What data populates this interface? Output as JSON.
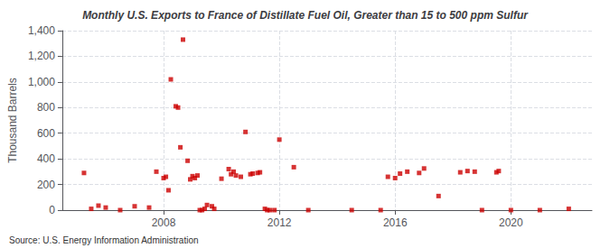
{
  "chart_data": {
    "type": "scatter",
    "title": "Monthly U.S. Exports to France of Distillate Fuel Oil, Greater than 15 to 500 ppm Sulfur",
    "ylabel": "Thousand Barrels",
    "annotations": [
      "Source: U.S. Energy Information Administration"
    ],
    "color": "#cc0000",
    "marker": "square",
    "grid": true,
    "xlim": [
      2004.5,
      2022.8
    ],
    "xticks": [
      2008,
      2012,
      2016,
      2020
    ],
    "ylim": [
      0,
      1400
    ],
    "yticks": [
      0,
      200,
      400,
      600,
      800,
      {
        "value": 1000,
        "label": "1,000"
      },
      {
        "value": 1200,
        "label": "1,200"
      },
      {
        "value": 1400,
        "label": "1,400"
      }
    ],
    "x": [
      2005.25,
      2005.5,
      2005.75,
      2006.0,
      2006.5,
      2007.0,
      2007.5,
      2007.75,
      2008.0,
      2008.08,
      2008.17,
      2008.25,
      2008.42,
      2008.5,
      2008.58,
      2008.67,
      2008.83,
      2008.92,
      2009.0,
      2009.08,
      2009.17,
      2009.25,
      2009.33,
      2009.42,
      2009.5,
      2009.67,
      2009.75,
      2010.0,
      2010.25,
      2010.33,
      2010.42,
      2010.5,
      2010.67,
      2010.83,
      2011.0,
      2011.08,
      2011.25,
      2011.33,
      2011.5,
      2011.58,
      2011.67,
      2011.83,
      2012.0,
      2012.5,
      2013.0,
      2014.5,
      2015.5,
      2015.75,
      2016.0,
      2016.17,
      2016.42,
      2016.83,
      2017.0,
      2017.5,
      2018.25,
      2018.5,
      2018.75,
      2019.0,
      2019.5,
      2019.58,
      2020.0,
      2021.0,
      2022.0
    ],
    "values": [
      290,
      10,
      35,
      20,
      0,
      30,
      20,
      300,
      250,
      260,
      155,
      1020,
      810,
      800,
      490,
      1330,
      385,
      240,
      265,
      250,
      270,
      0,
      0,
      10,
      40,
      30,
      10,
      245,
      320,
      280,
      300,
      270,
      260,
      610,
      280,
      285,
      290,
      295,
      10,
      0,
      0,
      0,
      550,
      335,
      0,
      0,
      0,
      260,
      250,
      285,
      300,
      290,
      325,
      110,
      295,
      305,
      300,
      0,
      295,
      305,
      0,
      0,
      10
    ]
  }
}
